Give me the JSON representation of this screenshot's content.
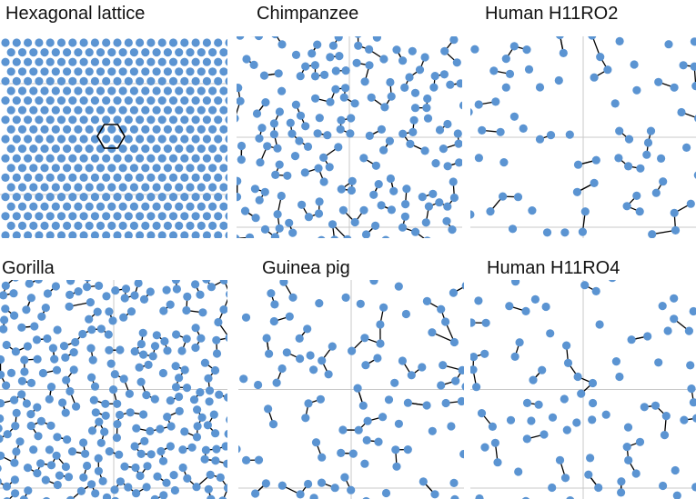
{
  "panels": [
    {
      "id": "hex",
      "title": "Hexagonal lattice",
      "pattern": "hexagonal",
      "seed": 1,
      "points": 0,
      "link_fraction": 0
    },
    {
      "id": "chimp",
      "title": "Chimpanzee",
      "pattern": "clustered",
      "seed": 7,
      "points": 175,
      "link_fraction": 0.78
    },
    {
      "id": "h2",
      "title": "Human H11RO2",
      "pattern": "sparse",
      "seed": 13,
      "points": 75,
      "link_fraction": 0.5
    },
    {
      "id": "gorilla",
      "title": "Gorilla",
      "pattern": "clustered",
      "seed": 23,
      "points": 270,
      "link_fraction": 0.8
    },
    {
      "id": "guinea",
      "title": "Guinea pig",
      "pattern": "sparse",
      "seed": 31,
      "points": 100,
      "link_fraction": 0.6
    },
    {
      "id": "h4",
      "title": "Human H11RO4",
      "pattern": "sparse",
      "seed": 41,
      "points": 85,
      "link_fraction": 0.5
    }
  ],
  "colors": {
    "dot": "#5b94d2",
    "link": "#000000",
    "grid": "#c8c8c8",
    "hexagon_marker": "#000000"
  }
}
